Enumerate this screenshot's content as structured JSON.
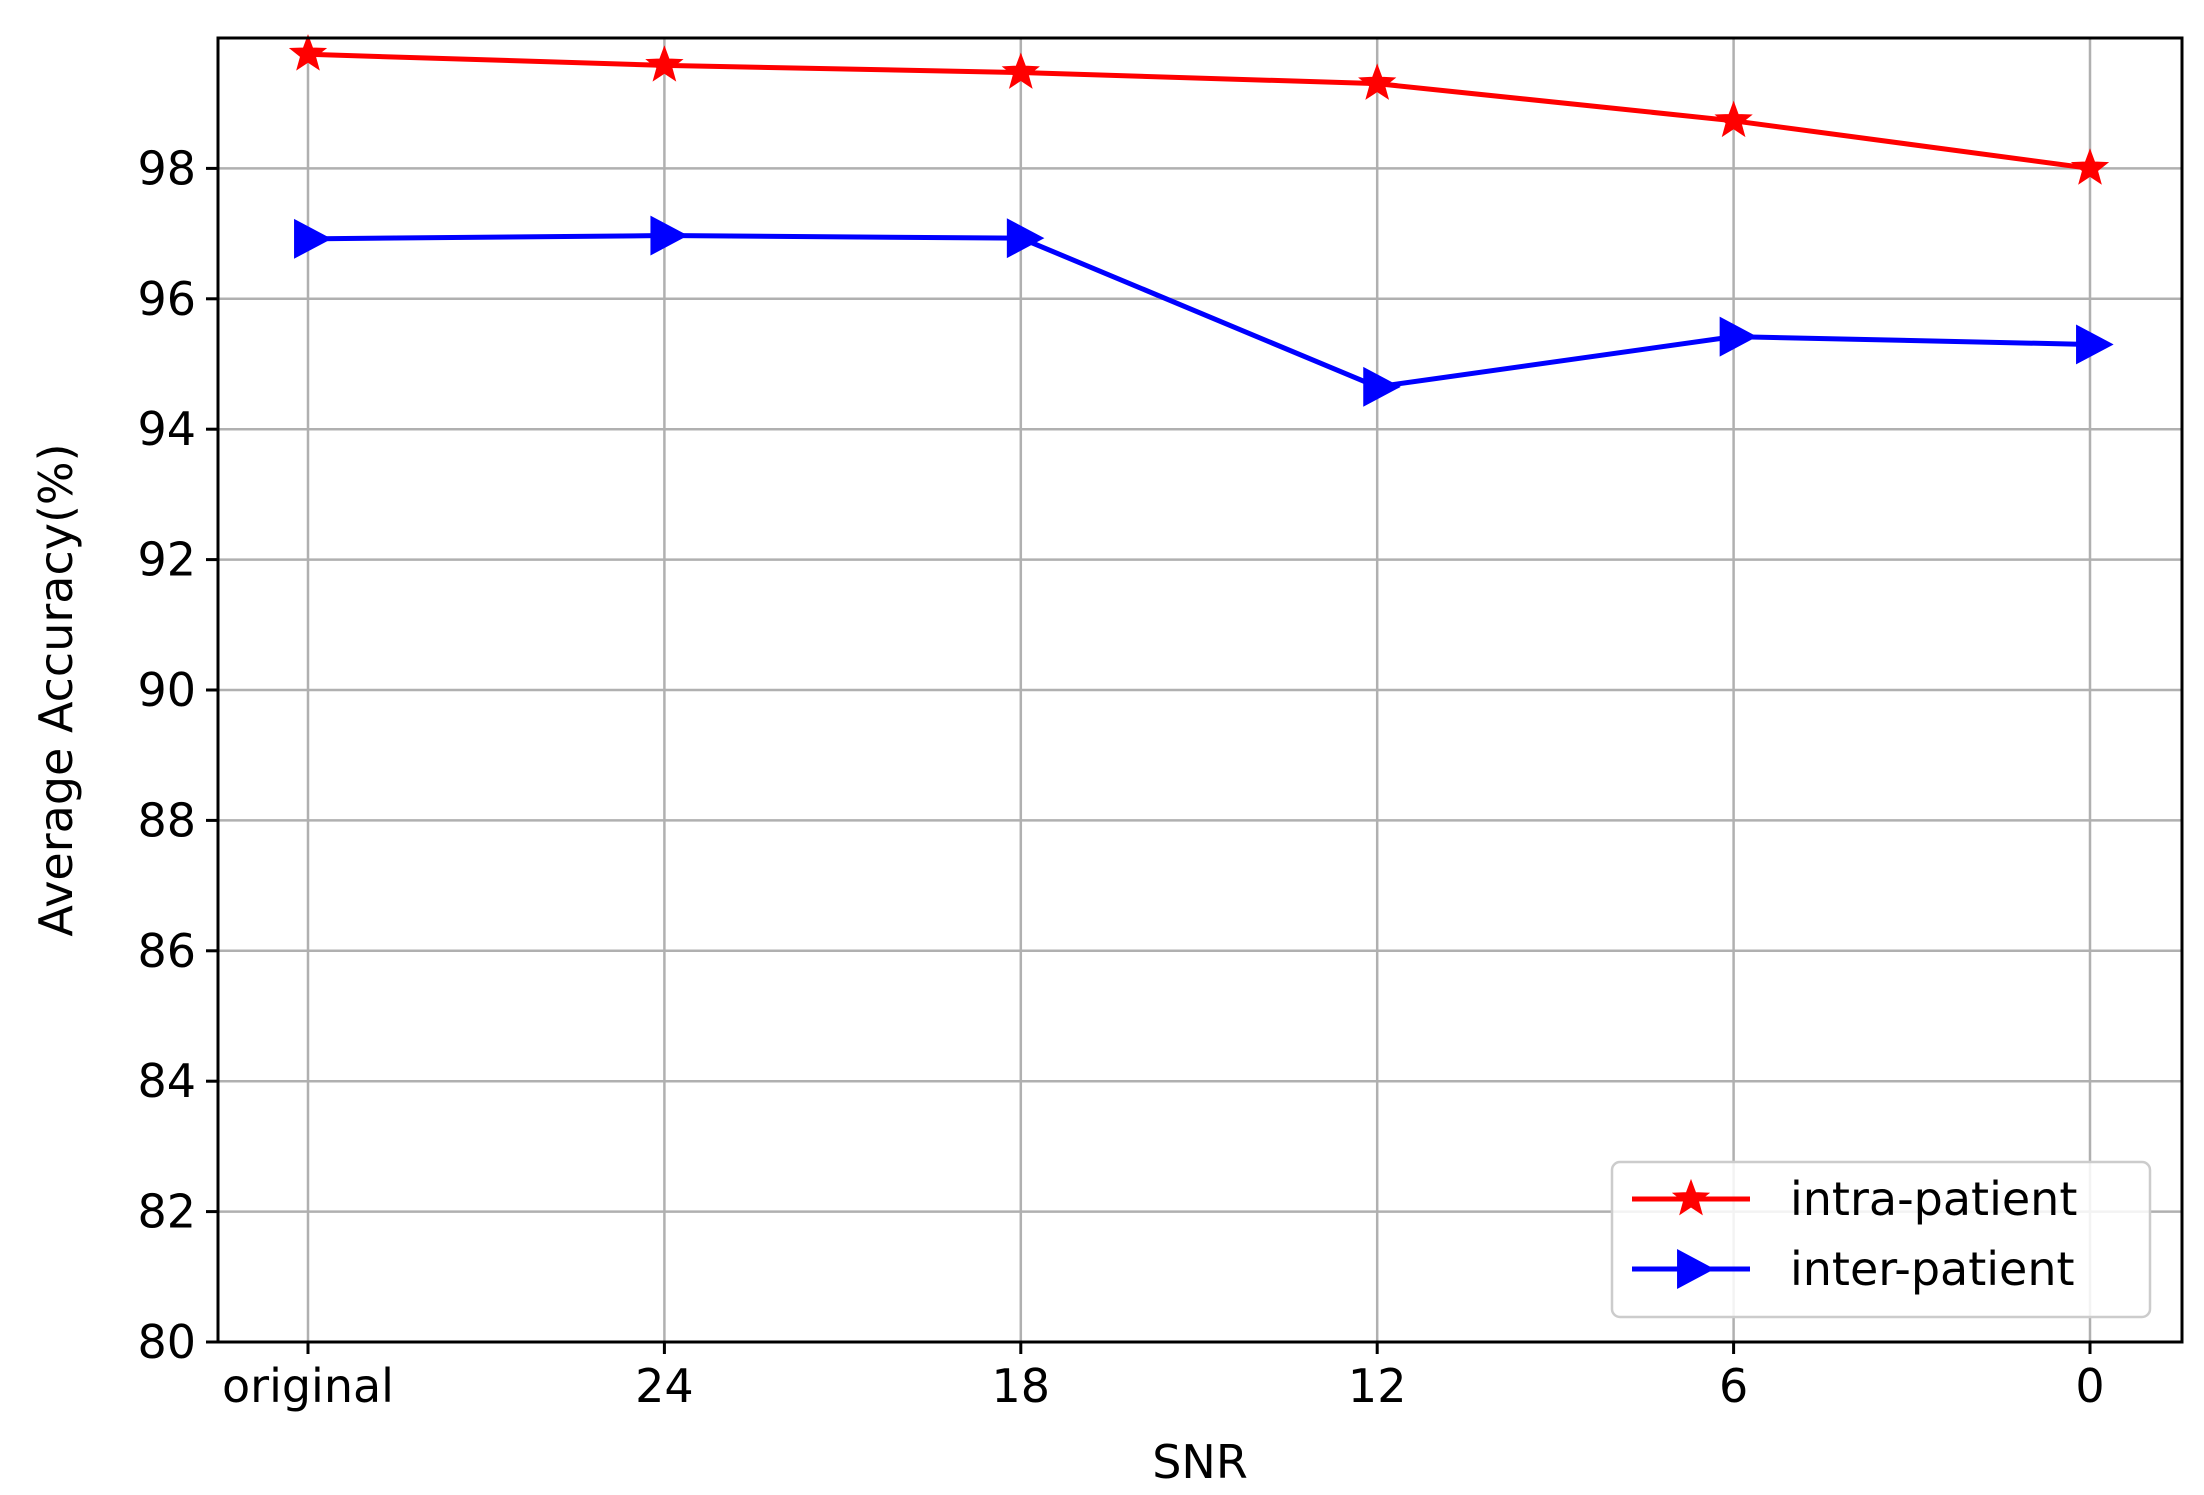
{
  "chart_data": {
    "type": "line",
    "xlabel": "SNR",
    "ylabel": "Average Accuracy(%)",
    "categories": [
      "original",
      "24",
      "18",
      "12",
      "6",
      "0"
    ],
    "ylim": [
      80,
      100
    ],
    "yticks": [
      80,
      82,
      84,
      86,
      88,
      90,
      92,
      94,
      96,
      98
    ],
    "grid": true,
    "legend_position": "lower-right",
    "series": [
      {
        "name": "intra-patient",
        "color": "#ff0000",
        "marker": "star",
        "values": [
          99.75,
          99.58,
          99.47,
          99.3,
          98.73,
          98.0
        ]
      },
      {
        "name": "inter-patient",
        "color": "#0000ff",
        "marker": "triangle-right",
        "values": [
          96.92,
          96.97,
          96.93,
          94.65,
          95.42,
          95.3
        ]
      }
    ]
  }
}
